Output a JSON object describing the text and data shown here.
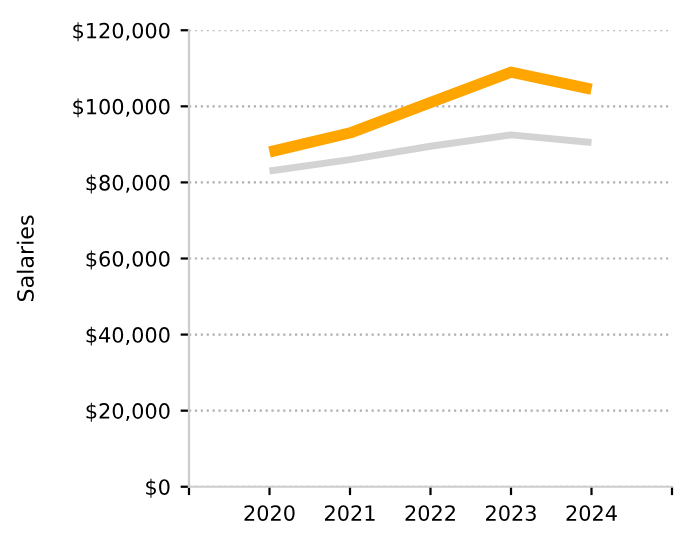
{
  "chart_data": {
    "type": "line",
    "ylabel": "Salaries",
    "x": [
      2020,
      2021,
      2022,
      2023,
      2024
    ],
    "series": [
      {
        "color": "#ffa500",
        "values": [
          88000,
          93000,
          101000,
          109000,
          104500
        ]
      },
      {
        "color": "#d3d3d3",
        "values": [
          83000,
          86000,
          89500,
          92500,
          90500
        ]
      }
    ],
    "xlim": [
      2019,
      2025
    ],
    "xticks": [
      {
        "value": 2019,
        "label": null
      },
      2020,
      2021,
      2022,
      2023,
      2024,
      {
        "value": 2025,
        "label": null
      }
    ],
    "ylim": [
      0,
      120000
    ],
    "yticks": [
      {
        "value": 0,
        "label": "$0"
      },
      {
        "value": 20000,
        "label": "$20,000"
      },
      {
        "value": 40000,
        "label": "$40,000"
      },
      {
        "value": 60000,
        "label": "$60,000"
      },
      {
        "value": 80000,
        "label": "$80,000"
      },
      {
        "value": 100000,
        "label": "$100,000"
      },
      {
        "value": 120000,
        "label": "$120,000"
      }
    ],
    "grid": "y",
    "marker": "none",
    "line_style": "solid"
  }
}
